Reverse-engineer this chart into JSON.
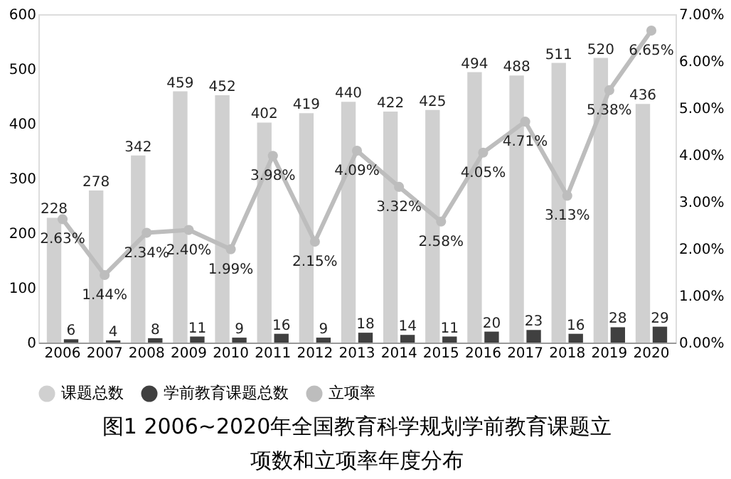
{
  "chart_data": {
    "type": "bar",
    "title": "图1 2006~2020年全国教育科学规划学前教育课题立项数和立项率年度分布",
    "categories": [
      "2006",
      "2007",
      "2008",
      "2009",
      "2010",
      "2011",
      "2012",
      "2013",
      "2014",
      "2015",
      "2016",
      "2017",
      "2018",
      "2019",
      "2020"
    ],
    "series": [
      {
        "name": "课题总数",
        "color": "#d0d0d0",
        "values": [
          228,
          278,
          342,
          459,
          452,
          402,
          419,
          440,
          422,
          425,
          494,
          488,
          511,
          520,
          436
        ]
      },
      {
        "name": "学前教育课题总数",
        "color": "#404040",
        "values": [
          6,
          4,
          8,
          11,
          9,
          16,
          9,
          18,
          14,
          11,
          20,
          23,
          16,
          28,
          29
        ]
      },
      {
        "name": "立项率",
        "type": "line",
        "axis": "y2",
        "color": "#bdbdbd",
        "marker": "circle",
        "values": [
          2.63,
          1.44,
          2.34,
          2.4,
          1.99,
          3.98,
          2.15,
          4.09,
          3.32,
          2.58,
          4.05,
          4.71,
          3.13,
          5.38,
          6.65
        ],
        "value_labels": [
          "2.63%",
          "1.44%",
          "2.34%",
          "2.40%",
          "1.99%",
          "3.98%",
          "2.15%",
          "4.09%",
          "3.32%",
          "2.58%",
          "4.05%",
          "4.71%",
          "3.13%",
          "5.38%",
          "6.65%"
        ]
      }
    ],
    "ylim": [
      0,
      600
    ],
    "yticks": [
      0,
      100,
      200,
      300,
      400,
      500,
      600
    ],
    "y2lim": [
      0,
      7
    ],
    "y2ticks": [
      {
        "value": 0,
        "label": "0.00%"
      },
      {
        "value": 1,
        "label": "1.00%"
      },
      {
        "value": 2,
        "label": "2.00%"
      },
      {
        "value": 3,
        "label": "3.00%"
      },
      {
        "value": 4,
        "label": "4.00%"
      },
      {
        "value": 5,
        "label": "5.00%"
      },
      {
        "value": 6,
        "label": "6.00%"
      },
      {
        "value": 7,
        "label": "7.00%"
      }
    ],
    "data_labels": true,
    "grid": false,
    "legend": "bottom"
  }
}
